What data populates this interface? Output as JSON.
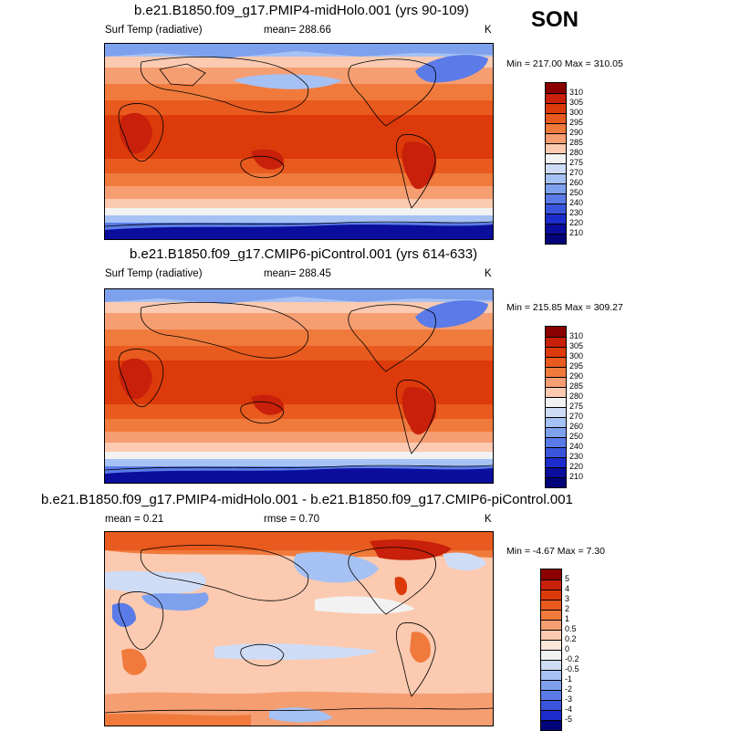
{
  "season": "SON",
  "panels": [
    {
      "title": "b.e21.B1850.f09_g17.PMIP4-midHolo.001 (yrs 90-109)",
      "left_label": "Surf Temp (radiative)",
      "center_label": "mean= 288.66",
      "units": "K",
      "minmax": "Min = 217.00 Max = 310.05",
      "levels": [
        "310",
        "305",
        "300",
        "295",
        "290",
        "285",
        "280",
        "275",
        "270",
        "260",
        "250",
        "240",
        "230",
        "220",
        "210"
      ],
      "colors": [
        "#8a0000",
        "#c8200a",
        "#dc3a0a",
        "#e85a1e",
        "#f07a3c",
        "#f59e72",
        "#fbcab0",
        "#f2f2f2",
        "#cfdcf6",
        "#a6c1f3",
        "#7ea1ee",
        "#5a7be8",
        "#3a55dd",
        "#1d2ccc",
        "#0b0d9c",
        "#03037a"
      ]
    },
    {
      "title": "b.e21.B1850.f09_g17.CMIP6-piControl.001 (yrs 614-633)",
      "left_label": "Surf Temp (radiative)",
      "center_label": "mean= 288.45",
      "units": "K",
      "minmax": "Min = 215.85 Max = 309.27",
      "levels": [
        "310",
        "305",
        "300",
        "295",
        "290",
        "285",
        "280",
        "275",
        "270",
        "260",
        "250",
        "240",
        "230",
        "220",
        "210"
      ],
      "colors": [
        "#8a0000",
        "#c8200a",
        "#dc3a0a",
        "#e85a1e",
        "#f07a3c",
        "#f59e72",
        "#fbcab0",
        "#f2f2f2",
        "#cfdcf6",
        "#a6c1f3",
        "#7ea1ee",
        "#5a7be8",
        "#3a55dd",
        "#1d2ccc",
        "#0b0d9c",
        "#03037a"
      ]
    },
    {
      "title": "b.e21.B1850.f09_g17.PMIP4-midHolo.001 - b.e21.B1850.f09_g17.CMIP6-piControl.001",
      "left_label": "mean =   0.21",
      "center_label": "rmse =   0.70",
      "units": "K",
      "minmax": "Min =  -4.67 Max =   7.30",
      "levels": [
        "5",
        "4",
        "3",
        "2",
        "1",
        "0.5",
        "0.2",
        "0",
        "-0.2",
        "-0.5",
        "-1",
        "-2",
        "-3",
        "-4",
        "-5"
      ],
      "colors": [
        "#8a0000",
        "#c8200a",
        "#dc3a0a",
        "#e85a1e",
        "#f07a3c",
        "#f59e72",
        "#fbcab0",
        "#fde6da",
        "#f2f2f2",
        "#cfdcf6",
        "#a6c1f3",
        "#7ea1ee",
        "#5a7be8",
        "#3a55dd",
        "#1d2ccc",
        "#03037a"
      ]
    }
  ]
}
